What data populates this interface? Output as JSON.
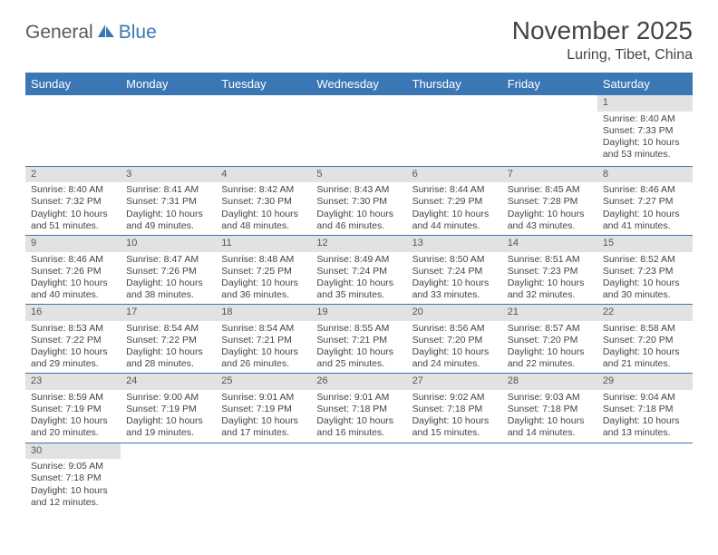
{
  "logo": {
    "part1": "General",
    "part2": "Blue"
  },
  "title": "November 2025",
  "location": "Luring, Tibet, China",
  "colors": {
    "header_bg": "#3b77b5",
    "header_fg": "#ffffff",
    "daynum_bg": "#e2e2e2",
    "row_border": "#3b77b5",
    "text": "#444444",
    "page_bg": "#ffffff"
  },
  "weekdays": [
    "Sunday",
    "Monday",
    "Tuesday",
    "Wednesday",
    "Thursday",
    "Friday",
    "Saturday"
  ],
  "weeks": [
    [
      {
        "n": "",
        "sr": "",
        "ss": "",
        "dl": ""
      },
      {
        "n": "",
        "sr": "",
        "ss": "",
        "dl": ""
      },
      {
        "n": "",
        "sr": "",
        "ss": "",
        "dl": ""
      },
      {
        "n": "",
        "sr": "",
        "ss": "",
        "dl": ""
      },
      {
        "n": "",
        "sr": "",
        "ss": "",
        "dl": ""
      },
      {
        "n": "",
        "sr": "",
        "ss": "",
        "dl": ""
      },
      {
        "n": "1",
        "sr": "Sunrise: 8:40 AM",
        "ss": "Sunset: 7:33 PM",
        "dl": "Daylight: 10 hours and 53 minutes."
      }
    ],
    [
      {
        "n": "2",
        "sr": "Sunrise: 8:40 AM",
        "ss": "Sunset: 7:32 PM",
        "dl": "Daylight: 10 hours and 51 minutes."
      },
      {
        "n": "3",
        "sr": "Sunrise: 8:41 AM",
        "ss": "Sunset: 7:31 PM",
        "dl": "Daylight: 10 hours and 49 minutes."
      },
      {
        "n": "4",
        "sr": "Sunrise: 8:42 AM",
        "ss": "Sunset: 7:30 PM",
        "dl": "Daylight: 10 hours and 48 minutes."
      },
      {
        "n": "5",
        "sr": "Sunrise: 8:43 AM",
        "ss": "Sunset: 7:30 PM",
        "dl": "Daylight: 10 hours and 46 minutes."
      },
      {
        "n": "6",
        "sr": "Sunrise: 8:44 AM",
        "ss": "Sunset: 7:29 PM",
        "dl": "Daylight: 10 hours and 44 minutes."
      },
      {
        "n": "7",
        "sr": "Sunrise: 8:45 AM",
        "ss": "Sunset: 7:28 PM",
        "dl": "Daylight: 10 hours and 43 minutes."
      },
      {
        "n": "8",
        "sr": "Sunrise: 8:46 AM",
        "ss": "Sunset: 7:27 PM",
        "dl": "Daylight: 10 hours and 41 minutes."
      }
    ],
    [
      {
        "n": "9",
        "sr": "Sunrise: 8:46 AM",
        "ss": "Sunset: 7:26 PM",
        "dl": "Daylight: 10 hours and 40 minutes."
      },
      {
        "n": "10",
        "sr": "Sunrise: 8:47 AM",
        "ss": "Sunset: 7:26 PM",
        "dl": "Daylight: 10 hours and 38 minutes."
      },
      {
        "n": "11",
        "sr": "Sunrise: 8:48 AM",
        "ss": "Sunset: 7:25 PM",
        "dl": "Daylight: 10 hours and 36 minutes."
      },
      {
        "n": "12",
        "sr": "Sunrise: 8:49 AM",
        "ss": "Sunset: 7:24 PM",
        "dl": "Daylight: 10 hours and 35 minutes."
      },
      {
        "n": "13",
        "sr": "Sunrise: 8:50 AM",
        "ss": "Sunset: 7:24 PM",
        "dl": "Daylight: 10 hours and 33 minutes."
      },
      {
        "n": "14",
        "sr": "Sunrise: 8:51 AM",
        "ss": "Sunset: 7:23 PM",
        "dl": "Daylight: 10 hours and 32 minutes."
      },
      {
        "n": "15",
        "sr": "Sunrise: 8:52 AM",
        "ss": "Sunset: 7:23 PM",
        "dl": "Daylight: 10 hours and 30 minutes."
      }
    ],
    [
      {
        "n": "16",
        "sr": "Sunrise: 8:53 AM",
        "ss": "Sunset: 7:22 PM",
        "dl": "Daylight: 10 hours and 29 minutes."
      },
      {
        "n": "17",
        "sr": "Sunrise: 8:54 AM",
        "ss": "Sunset: 7:22 PM",
        "dl": "Daylight: 10 hours and 28 minutes."
      },
      {
        "n": "18",
        "sr": "Sunrise: 8:54 AM",
        "ss": "Sunset: 7:21 PM",
        "dl": "Daylight: 10 hours and 26 minutes."
      },
      {
        "n": "19",
        "sr": "Sunrise: 8:55 AM",
        "ss": "Sunset: 7:21 PM",
        "dl": "Daylight: 10 hours and 25 minutes."
      },
      {
        "n": "20",
        "sr": "Sunrise: 8:56 AM",
        "ss": "Sunset: 7:20 PM",
        "dl": "Daylight: 10 hours and 24 minutes."
      },
      {
        "n": "21",
        "sr": "Sunrise: 8:57 AM",
        "ss": "Sunset: 7:20 PM",
        "dl": "Daylight: 10 hours and 22 minutes."
      },
      {
        "n": "22",
        "sr": "Sunrise: 8:58 AM",
        "ss": "Sunset: 7:20 PM",
        "dl": "Daylight: 10 hours and 21 minutes."
      }
    ],
    [
      {
        "n": "23",
        "sr": "Sunrise: 8:59 AM",
        "ss": "Sunset: 7:19 PM",
        "dl": "Daylight: 10 hours and 20 minutes."
      },
      {
        "n": "24",
        "sr": "Sunrise: 9:00 AM",
        "ss": "Sunset: 7:19 PM",
        "dl": "Daylight: 10 hours and 19 minutes."
      },
      {
        "n": "25",
        "sr": "Sunrise: 9:01 AM",
        "ss": "Sunset: 7:19 PM",
        "dl": "Daylight: 10 hours and 17 minutes."
      },
      {
        "n": "26",
        "sr": "Sunrise: 9:01 AM",
        "ss": "Sunset: 7:18 PM",
        "dl": "Daylight: 10 hours and 16 minutes."
      },
      {
        "n": "27",
        "sr": "Sunrise: 9:02 AM",
        "ss": "Sunset: 7:18 PM",
        "dl": "Daylight: 10 hours and 15 minutes."
      },
      {
        "n": "28",
        "sr": "Sunrise: 9:03 AM",
        "ss": "Sunset: 7:18 PM",
        "dl": "Daylight: 10 hours and 14 minutes."
      },
      {
        "n": "29",
        "sr": "Sunrise: 9:04 AM",
        "ss": "Sunset: 7:18 PM",
        "dl": "Daylight: 10 hours and 13 minutes."
      }
    ],
    [
      {
        "n": "30",
        "sr": "Sunrise: 9:05 AM",
        "ss": "Sunset: 7:18 PM",
        "dl": "Daylight: 10 hours and 12 minutes."
      },
      {
        "n": "",
        "sr": "",
        "ss": "",
        "dl": ""
      },
      {
        "n": "",
        "sr": "",
        "ss": "",
        "dl": ""
      },
      {
        "n": "",
        "sr": "",
        "ss": "",
        "dl": ""
      },
      {
        "n": "",
        "sr": "",
        "ss": "",
        "dl": ""
      },
      {
        "n": "",
        "sr": "",
        "ss": "",
        "dl": ""
      },
      {
        "n": "",
        "sr": "",
        "ss": "",
        "dl": ""
      }
    ]
  ]
}
